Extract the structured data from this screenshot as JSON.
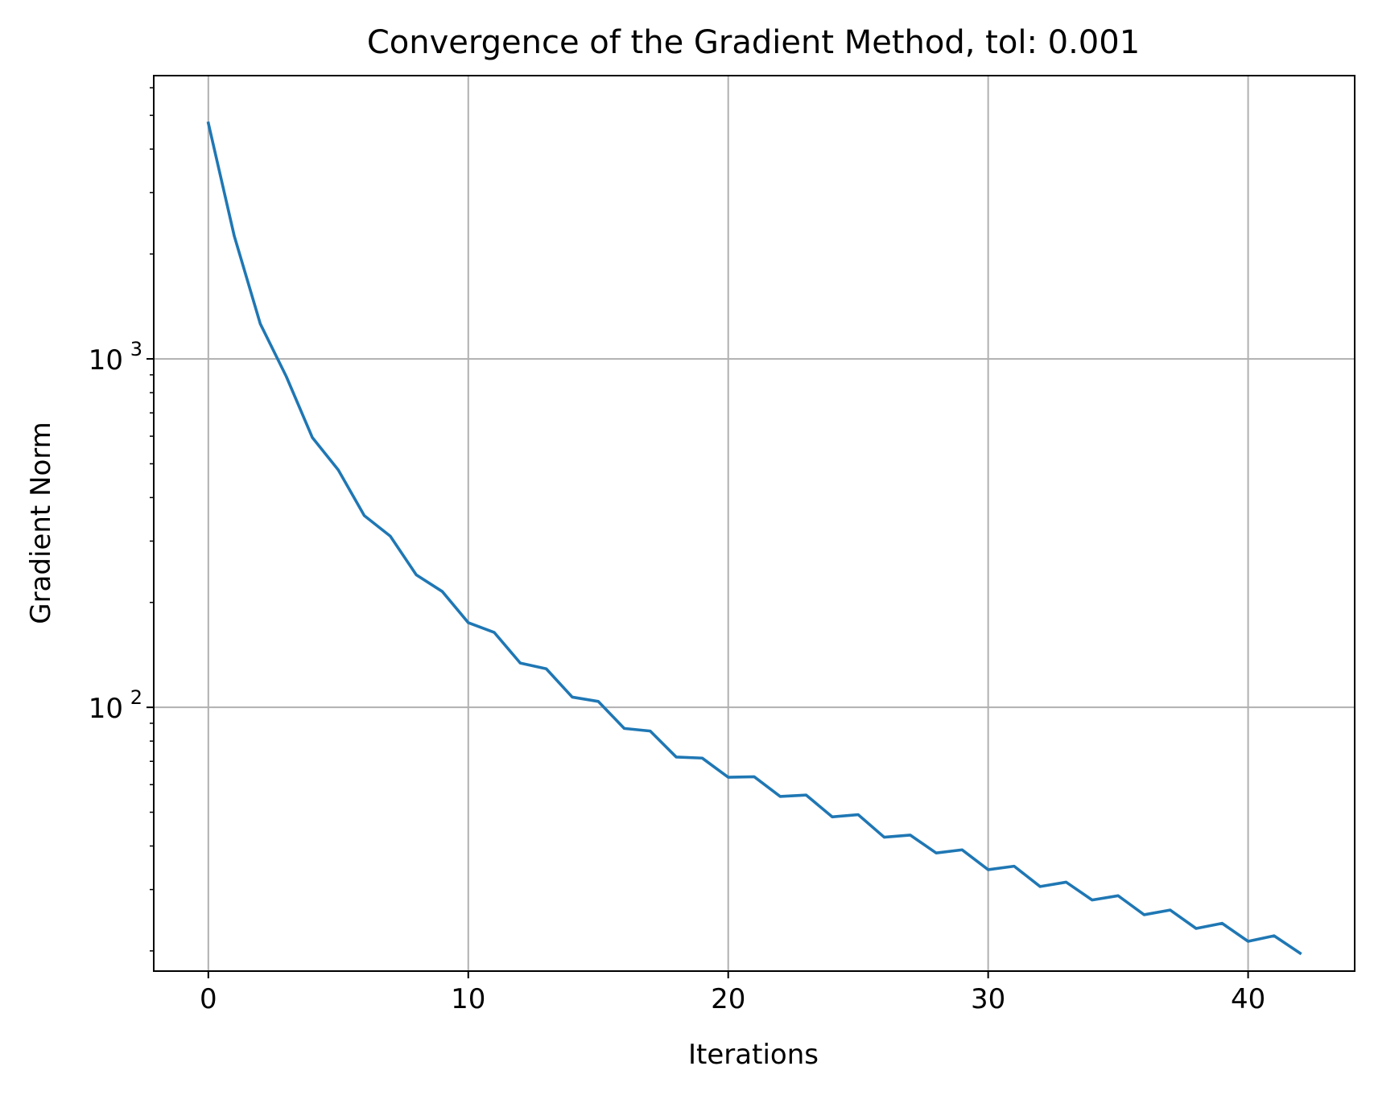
{
  "chart_data": {
    "type": "line",
    "title": "Convergence of the Gradient Method, tol: 0.001",
    "xlabel": "Iterations",
    "ylabel": "Gradient Norm",
    "yscale": "log",
    "grid": true,
    "xlim": [
      -2.1,
      44.1
    ],
    "ylim": [
      17.5,
      6500
    ],
    "x_ticks": [
      0,
      10,
      20,
      30,
      40
    ],
    "y_ticks": [
      {
        "value": 100,
        "base": "10",
        "exp": "2"
      },
      {
        "value": 1000,
        "base": "10",
        "exp": "3"
      }
    ],
    "series": [
      {
        "color": "#1f77b4",
        "x": [
          0,
          1,
          2,
          3,
          4,
          5,
          6,
          7,
          8,
          9,
          10,
          11,
          12,
          13,
          14,
          15,
          16,
          17,
          18,
          19,
          20,
          21,
          22,
          23,
          24,
          25,
          26,
          27,
          28,
          29,
          30,
          31,
          32,
          33,
          34,
          35,
          36,
          37,
          38,
          39,
          40,
          41,
          42
        ],
        "values": [
          4750,
          2250,
          1260,
          890,
          595,
          480,
          355,
          310,
          240,
          215,
          175,
          164,
          134,
          129,
          107,
          104,
          87,
          85.5,
          72,
          71.5,
          63,
          63.2,
          55.5,
          56,
          48.5,
          49.2,
          42.4,
          43,
          38.2,
          39,
          34.2,
          35,
          30.6,
          31.5,
          28,
          28.8,
          25.4,
          26.2,
          23.2,
          24,
          21.3,
          22.1,
          19.7
        ]
      }
    ]
  }
}
